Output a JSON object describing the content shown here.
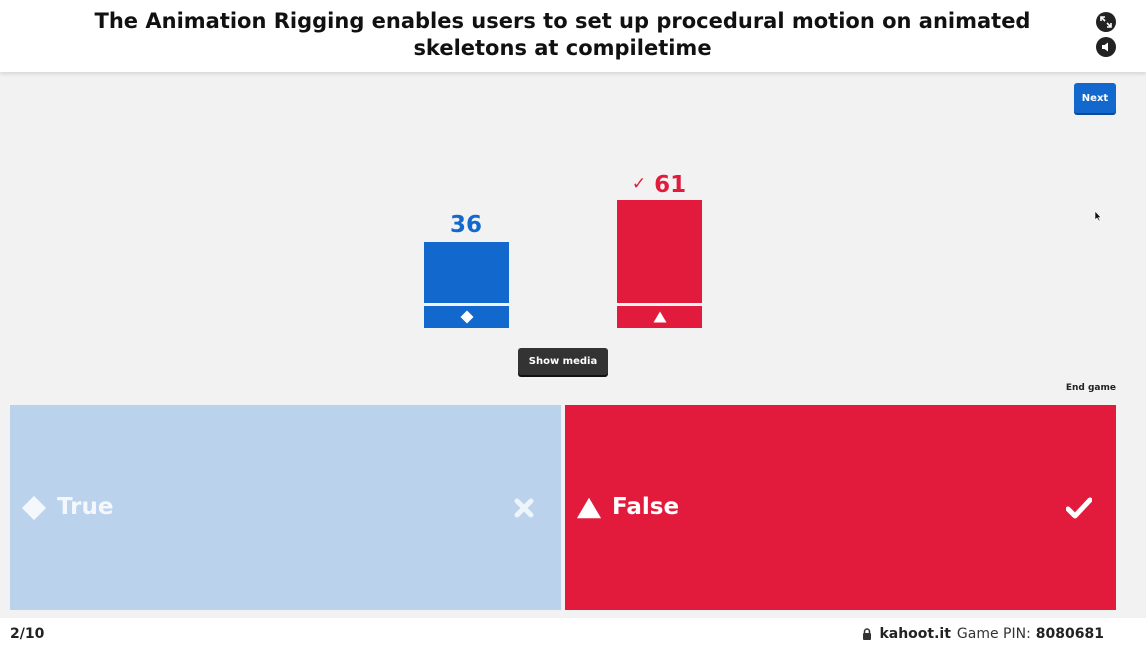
{
  "question": {
    "text": "The Animation Rigging enables users to set up procedural motion on animated skeletons at compiletime"
  },
  "header": {
    "icons": [
      "expand-icon",
      "volume-icon"
    ]
  },
  "controls": {
    "next_label": "Next",
    "show_media_label": "Show media",
    "end_game_label": "End game"
  },
  "results": [
    {
      "count": "36",
      "value": 36,
      "color": "#1368ce",
      "shape": "diamond-icon",
      "correct": false
    },
    {
      "count": "61",
      "value": 61,
      "color": "#e21b3c",
      "shape": "triangle-icon",
      "correct": true
    }
  ],
  "answers": [
    {
      "label": "True",
      "shape": "diamond-icon",
      "correct": false,
      "mark": "cross-icon",
      "color": "#bad2ec"
    },
    {
      "label": "False",
      "shape": "triangle-icon",
      "correct": true,
      "mark": "check-icon",
      "color": "#e21b3c"
    }
  ],
  "footer": {
    "question_counter": "2/10",
    "brand": "kahoot.it",
    "pin_label": "Game PIN:",
    "pin_value": "8080681"
  }
}
